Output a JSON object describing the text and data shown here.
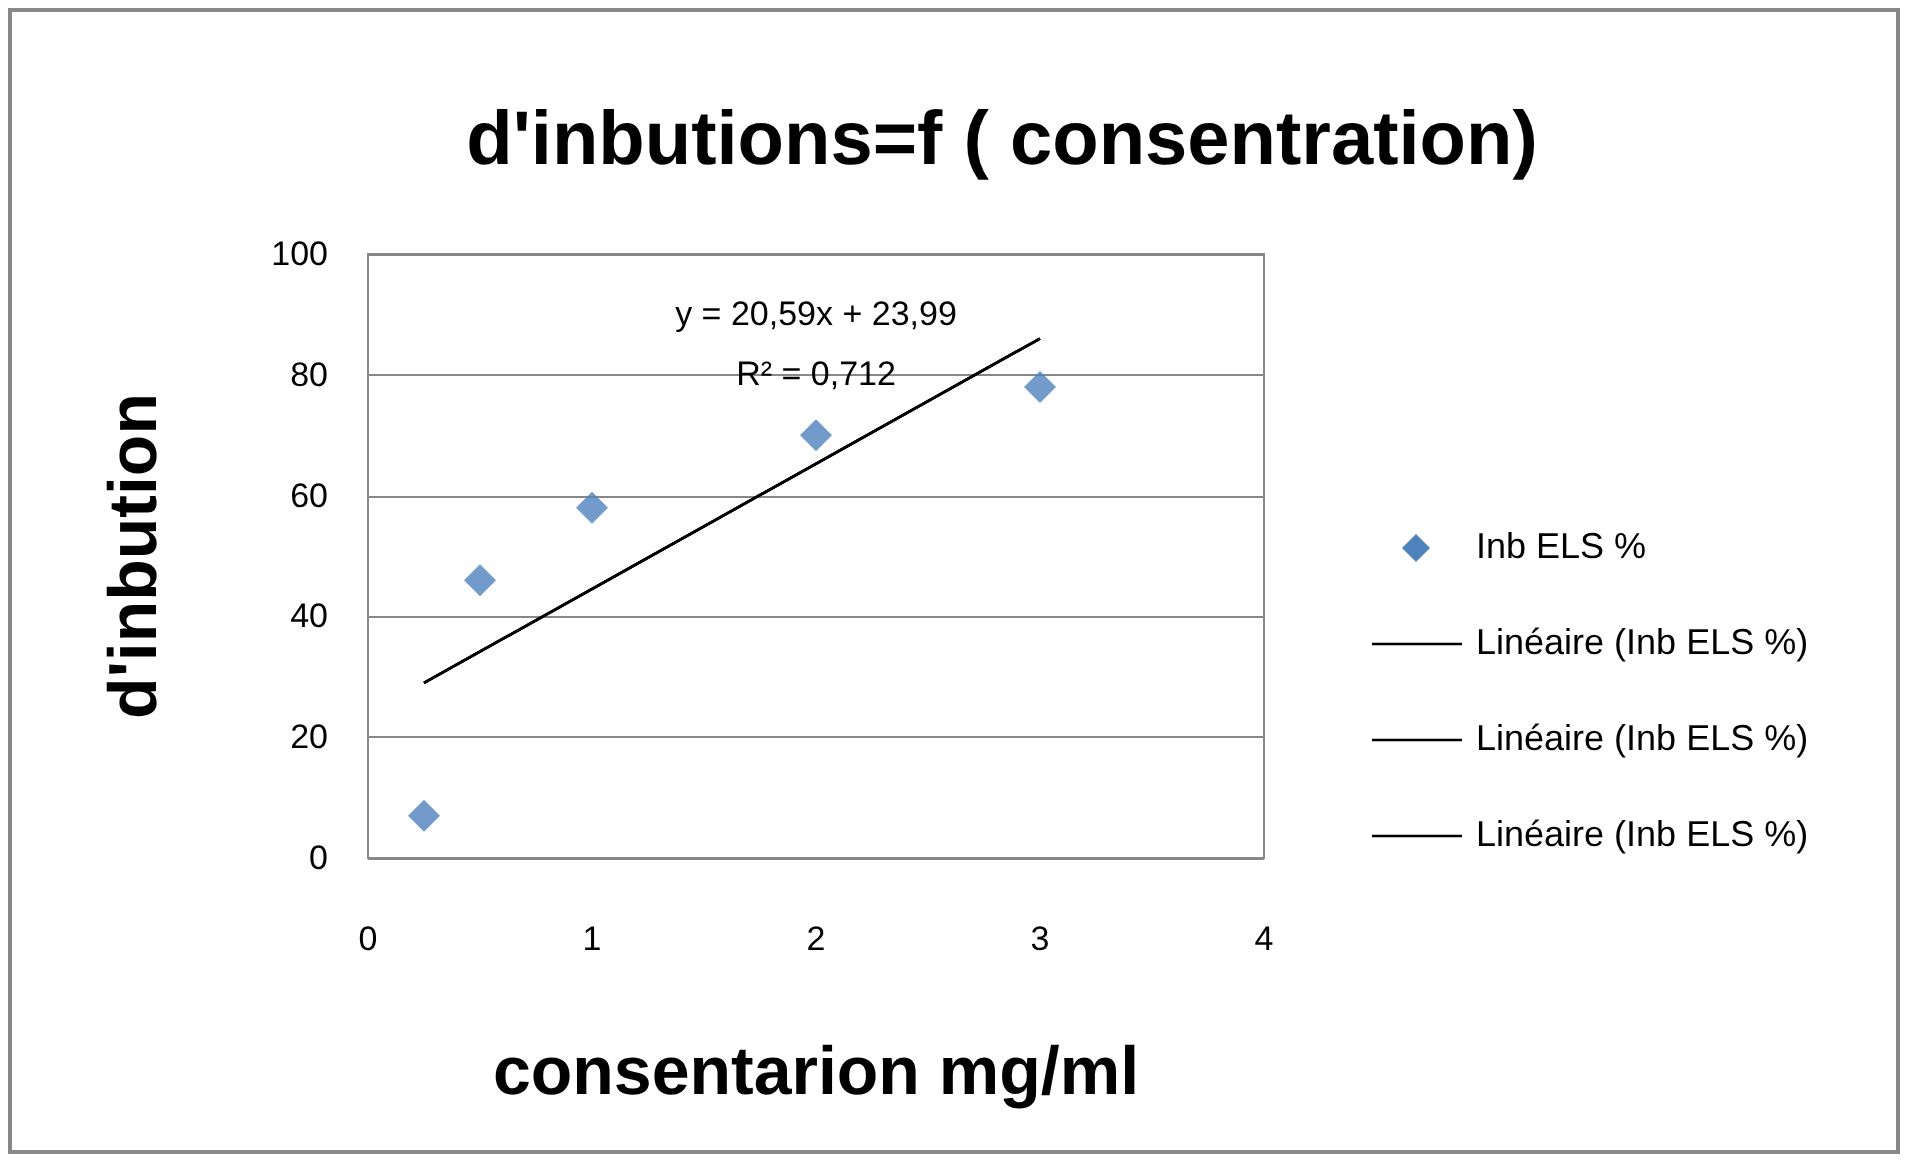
{
  "chart_data": {
    "type": "scatter",
    "title": "d'inbutions=f ( consentration)",
    "xlabel": "consentarion mg/ml",
    "ylabel": "d'inbution",
    "xlim": [
      0,
      4
    ],
    "xticks": [
      0,
      1,
      2,
      3,
      4
    ],
    "ylim": [
      0,
      100
    ],
    "yticks": [
      0,
      20,
      40,
      60,
      80,
      100
    ],
    "grid": "y",
    "legend": "right",
    "series": [
      {
        "name": "Inb ELS %",
        "color": "#4f81bd",
        "marker": "diamond",
        "x": [
          0.25,
          0.5,
          1,
          2,
          3
        ],
        "values": [
          7,
          46,
          58,
          70,
          78
        ]
      },
      {
        "name": "Linéaire (Inb ELS %)",
        "type": "line",
        "marker": "none",
        "color": "#000000",
        "x": [
          0.25,
          3
        ],
        "values": [
          29,
          86
        ]
      },
      {
        "name": "Linéaire (Inb ELS %)",
        "type": "line",
        "marker": "none",
        "color": "#000000",
        "x": [
          0.25,
          3
        ],
        "values": [
          29,
          86
        ]
      },
      {
        "name": "Linéaire (Inb ELS %)",
        "type": "line",
        "marker": "none",
        "color": "#000000",
        "x": [
          0.25,
          3
        ],
        "values": [
          29,
          86
        ]
      }
    ],
    "annotations": [
      "y = 20,59x + 23,99",
      "R² = 0,712"
    ]
  }
}
